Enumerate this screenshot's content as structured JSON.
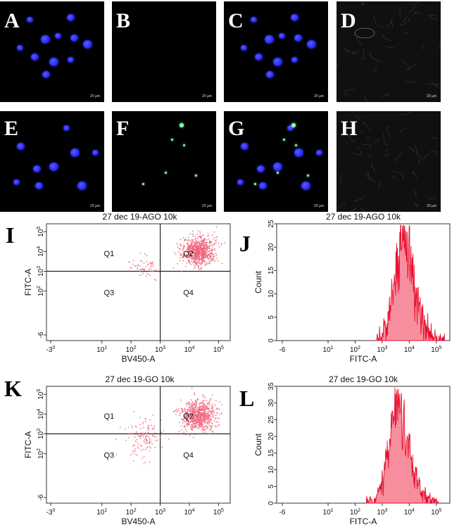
{
  "micrographs": [
    {
      "label": "A",
      "scale": "20 µm",
      "nuclei": true,
      "green": false,
      "bright": false
    },
    {
      "label": "B",
      "scale": "20 µm",
      "nuclei": false,
      "green": false,
      "bright": false
    },
    {
      "label": "C",
      "scale": "20 µm",
      "nuclei": true,
      "green": false,
      "bright": false
    },
    {
      "label": "D",
      "scale": "20 µm",
      "nuclei": false,
      "green": false,
      "bright": true
    },
    {
      "label": "E",
      "scale": "20 µm",
      "nuclei": true,
      "green": false,
      "bright": false
    },
    {
      "label": "F",
      "scale": "20 µm",
      "nuclei": false,
      "green": true,
      "bright": false
    },
    {
      "label": "G",
      "scale": "20 µm",
      "nuclei": true,
      "green": true,
      "bright": false
    },
    {
      "label": "H",
      "scale": "20 µm",
      "nuclei": false,
      "green": false,
      "bright": true
    }
  ],
  "colors": {
    "nucleus": "#2a2cff",
    "green": "#8dffb0",
    "dot": "#f0607a",
    "fill": "#f47a8c",
    "line": "#e8102e"
  },
  "chart_data": [
    {
      "panel": "I",
      "type": "scatter",
      "title": "27 dec 19-AGO 10k",
      "xlabel": "BV450-A",
      "ylabel": "FITC-A",
      "xticks": [
        "-3^0",
        "10^1",
        "10^2",
        "10^3",
        "10^4",
        "10^5"
      ],
      "yticks": [
        "-6",
        "10^2",
        "10^3",
        "10^4",
        "10^5"
      ],
      "quadrants": [
        "Q1",
        "Q2",
        "Q3",
        "Q4"
      ],
      "gate": {
        "x": 1000,
        "y": 1000
      },
      "clusters": [
        {
          "name": "Q2 main",
          "x_center": 20000,
          "y_center": 10000,
          "x_spread_decades": 0.28,
          "y_spread_decades": 0.35,
          "n": 820
        },
        {
          "name": "Q1 sparse",
          "x_center": 250,
          "y_center": 1500,
          "x_spread_decades": 0.3,
          "y_spread_decades": 0.3,
          "n": 60
        }
      ]
    },
    {
      "panel": "J",
      "type": "histogram",
      "title": "27 dec 19-AGO 10k",
      "xlabel": "FITC-A",
      "ylabel": "Count",
      "xticks": [
        "-6",
        "10^1",
        "10^2",
        "10^3",
        "10^4",
        "10^5"
      ],
      "ylim": [
        0,
        25
      ],
      "yticks": [
        0,
        5,
        10,
        15,
        20,
        25
      ],
      "peak_x": 5500,
      "peak_count": 24,
      "left_edge": 600,
      "right_edge": 200000
    },
    {
      "panel": "K",
      "type": "scatter",
      "title": "27 dec 19-GO 10k",
      "xlabel": "BV450-A",
      "ylabel": "FITC-A",
      "xticks": [
        "-3^0",
        "10^1",
        "10^2",
        "10^3",
        "10^4",
        "10^5"
      ],
      "yticks": [
        "-6",
        "10^2",
        "10^3",
        "10^4",
        "10^5"
      ],
      "quadrants": [
        "Q1",
        "Q2",
        "Q3",
        "Q4"
      ],
      "gate": {
        "x": 1000,
        "y": 1000
      },
      "clusters": [
        {
          "name": "Q2 main",
          "x_center": 20000,
          "y_center": 8000,
          "x_spread_decades": 0.3,
          "y_spread_decades": 0.38,
          "n": 760
        },
        {
          "name": "Q1/Q3 sparse",
          "x_center": 250,
          "y_center": 700,
          "x_spread_decades": 0.3,
          "y_spread_decades": 0.45,
          "n": 130
        }
      ]
    },
    {
      "panel": "L",
      "type": "histogram",
      "title": "27 dec 19-GO 10k",
      "xlabel": "FITC-A",
      "ylabel": "Count",
      "xticks": [
        "-6",
        "10^1",
        "10^2",
        "10^3",
        "10^4",
        "10^5"
      ],
      "ylim": [
        0,
        35
      ],
      "yticks": [
        0,
        5,
        10,
        15,
        20,
        25,
        30,
        35
      ],
      "peak_x": 3500,
      "peak_count": 34,
      "left_edge": 250,
      "right_edge": 120000
    }
  ]
}
